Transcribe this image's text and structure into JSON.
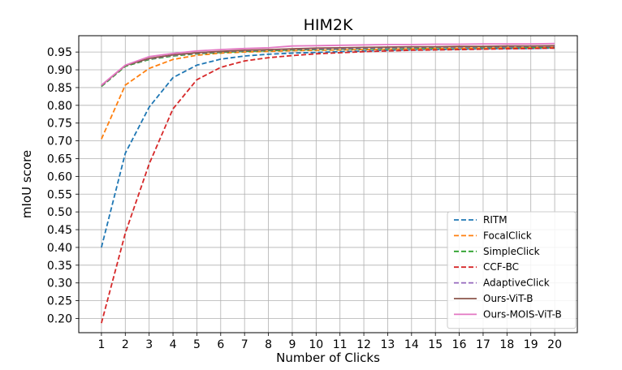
{
  "chart_data": {
    "type": "line",
    "title": "HIM2K",
    "xlabel": "Number of Clicks",
    "ylabel": "mIoU score",
    "x": [
      1,
      2,
      3,
      4,
      5,
      6,
      7,
      8,
      9,
      10,
      11,
      12,
      13,
      14,
      15,
      16,
      17,
      18,
      19,
      20
    ],
    "xlim": [
      0.05,
      20.95
    ],
    "ylim": [
      0.16,
      0.996
    ],
    "yticks": [
      0.2,
      0.25,
      0.3,
      0.35,
      0.4,
      0.45,
      0.5,
      0.55,
      0.6,
      0.65,
      0.7,
      0.75,
      0.8,
      0.85,
      0.9,
      0.95
    ],
    "ytick_labels": [
      "0.20",
      "0.25",
      "0.30",
      "0.35",
      "0.40",
      "0.45",
      "0.50",
      "0.55",
      "0.60",
      "0.65",
      "0.70",
      "0.75",
      "0.80",
      "0.85",
      "0.90",
      "0.95"
    ],
    "xtick_labels": [
      "1",
      "2",
      "3",
      "4",
      "5",
      "6",
      "7",
      "8",
      "9",
      "10",
      "11",
      "12",
      "13",
      "14",
      "15",
      "16",
      "17",
      "18",
      "19",
      "20"
    ],
    "grid": true,
    "legend_position": "lower-right",
    "series": [
      {
        "name": "RITM",
        "color": "#1f77b4",
        "style": "dashed",
        "values": [
          0.4,
          0.665,
          0.795,
          0.878,
          0.913,
          0.93,
          0.939,
          0.944,
          0.947,
          0.949,
          0.951,
          0.953,
          0.955,
          0.956,
          0.957,
          0.958,
          0.959,
          0.96,
          0.96,
          0.961
        ]
      },
      {
        "name": "FocalClick",
        "color": "#ff7f0e",
        "style": "dashed",
        "values": [
          0.705,
          0.857,
          0.904,
          0.929,
          0.941,
          0.947,
          0.95,
          0.952,
          0.954,
          0.955,
          0.956,
          0.957,
          0.958,
          0.959,
          0.96,
          0.961,
          0.961,
          0.962,
          0.962,
          0.963
        ]
      },
      {
        "name": "SimpleClick",
        "color": "#2ca02c",
        "style": "dashed",
        "values": [
          0.853,
          0.91,
          0.929,
          0.939,
          0.945,
          0.949,
          0.952,
          0.954,
          0.956,
          0.957,
          0.958,
          0.959,
          0.96,
          0.961,
          0.962,
          0.963,
          0.963,
          0.964,
          0.964,
          0.965
        ]
      },
      {
        "name": "CCF-BC",
        "color": "#d62728",
        "style": "dashed",
        "values": [
          0.187,
          0.44,
          0.635,
          0.79,
          0.872,
          0.907,
          0.925,
          0.934,
          0.94,
          0.945,
          0.948,
          0.951,
          0.953,
          0.955,
          0.956,
          0.957,
          0.958,
          0.959,
          0.96,
          0.961
        ]
      },
      {
        "name": "AdaptiveClick",
        "color": "#9467bd",
        "style": "dashed",
        "values": [
          0.855,
          0.912,
          0.931,
          0.941,
          0.947,
          0.951,
          0.954,
          0.956,
          0.958,
          0.959,
          0.96,
          0.961,
          0.962,
          0.963,
          0.964,
          0.964,
          0.965,
          0.965,
          0.966,
          0.966
        ]
      },
      {
        "name": "Ours-ViT-B",
        "color": "#8c564b",
        "style": "solid",
        "values": [
          0.856,
          0.912,
          0.932,
          0.942,
          0.948,
          0.952,
          0.955,
          0.957,
          0.959,
          0.961,
          0.962,
          0.963,
          0.964,
          0.965,
          0.965,
          0.966,
          0.966,
          0.967,
          0.967,
          0.968
        ]
      },
      {
        "name": "Ours-MOIS-ViT-B",
        "color": "#e377c2",
        "style": "solid",
        "values": [
          0.857,
          0.913,
          0.937,
          0.946,
          0.953,
          0.957,
          0.96,
          0.962,
          0.967,
          0.968,
          0.969,
          0.97,
          0.971,
          0.971,
          0.972,
          0.972,
          0.973,
          0.973,
          0.973,
          0.974
        ]
      }
    ]
  }
}
